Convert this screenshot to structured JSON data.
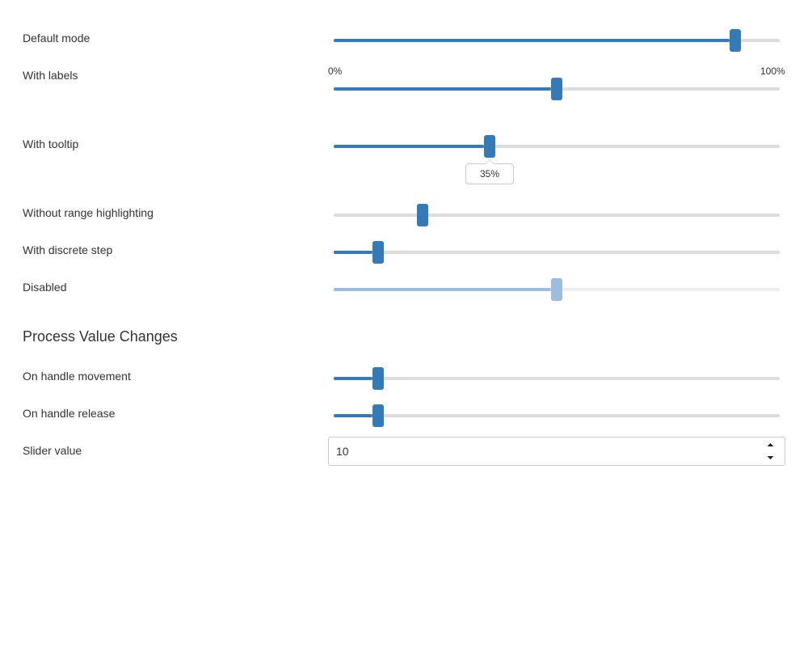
{
  "rows": {
    "default_mode": {
      "label": "Default mode",
      "value": 0.9
    },
    "with_labels": {
      "label": "With labels",
      "value": 0.5,
      "min_label": "0%",
      "max_label": "100%"
    },
    "with_tooltip": {
      "label": "With tooltip",
      "value": 0.35,
      "tooltip_text": "35%"
    },
    "without_range_highlighting": {
      "label": "Without range highlighting",
      "value": 0.2
    },
    "with_discrete_step": {
      "label": "With discrete step",
      "value": 0.1
    },
    "disabled": {
      "label": "Disabled",
      "value": 0.5
    }
  },
  "process_section": {
    "title": "Process Value Changes",
    "on_handle_movement": {
      "label": "On handle movement",
      "value": 0.1
    },
    "on_handle_release": {
      "label": "On handle release",
      "value": 0.1
    },
    "slider_value": {
      "label": "Slider value",
      "value": "10"
    }
  },
  "colors": {
    "accent": "#337ab7",
    "track": "#dddddd",
    "disabled_accent": "#9cbddb",
    "text": "#333333"
  },
  "icons": {
    "spin_up": "caret-up-icon",
    "spin_down": "caret-down-icon"
  }
}
